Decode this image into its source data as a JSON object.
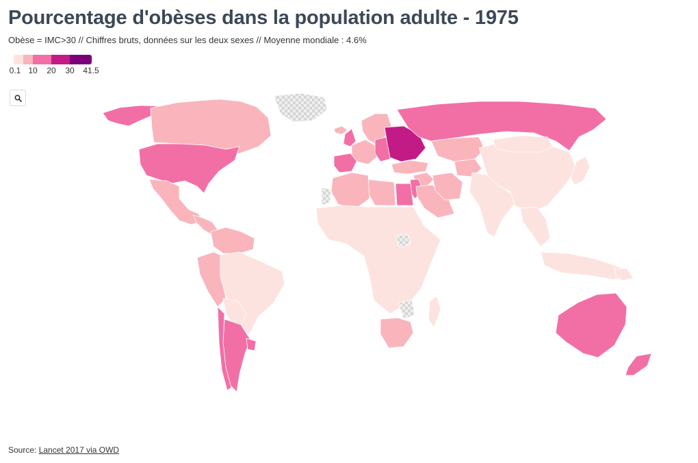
{
  "title": "Pourcentage d'obèses dans la population adulte - 1975",
  "subtitle": "Obèse = IMC>30 // Chiffres bruts, données sur les deux sexes // Moyenne mondiale : 4.6%",
  "legend": {
    "ticks": [
      "0.1",
      "10",
      "20",
      "30",
      "41.5"
    ],
    "breaks": [
      0.1,
      5,
      10,
      20,
      30,
      41.5
    ],
    "colors": [
      "#fde3df",
      "#f9b5bb",
      "#f26fa6",
      "#c31b86",
      "#7a0177"
    ],
    "nodata_color": "#d9d9d9"
  },
  "zoom": {
    "icon": "search-icon"
  },
  "source": {
    "prefix": "Source: ",
    "link_text": "Lancet 2017 via OWD"
  },
  "map_data": {
    "type": "choropleth",
    "scale_unit": "%",
    "regions": [
      {
        "area": "Alaska",
        "bin": 2
      },
      {
        "area": "Canada",
        "bin": 1
      },
      {
        "area": "Greenland",
        "bin": "nodata"
      },
      {
        "area": "United States",
        "bin": 2
      },
      {
        "area": "Mexico",
        "bin": 1
      },
      {
        "area": "Central America",
        "bin": 1
      },
      {
        "area": "Colombia / Venezuela",
        "bin": 1
      },
      {
        "area": "Peru / Ecuador",
        "bin": 1
      },
      {
        "area": "Brazil",
        "bin": 0
      },
      {
        "area": "Bolivia / Paraguay",
        "bin": 0
      },
      {
        "area": "Argentina",
        "bin": 2
      },
      {
        "area": "Chile",
        "bin": 2
      },
      {
        "area": "Uruguay",
        "bin": 2
      },
      {
        "area": "Iceland",
        "bin": 1
      },
      {
        "area": "Scandinavia",
        "bin": 1
      },
      {
        "area": "United Kingdom",
        "bin": 2
      },
      {
        "area": "Spain / Portugal",
        "bin": 2
      },
      {
        "area": "Western Europe",
        "bin": 1
      },
      {
        "area": "Central Europe",
        "bin": 2
      },
      {
        "area": "Eastern Europe",
        "bin": 3
      },
      {
        "area": "Russia",
        "bin": 2
      },
      {
        "area": "Kazakhstan",
        "bin": 1
      },
      {
        "area": "Central Asia",
        "bin": 1
      },
      {
        "area": "Turkey",
        "bin": 1
      },
      {
        "area": "Middle East",
        "bin": 1
      },
      {
        "area": "Israel / Jordan",
        "bin": 2
      },
      {
        "area": "Saudi Arabia",
        "bin": 1
      },
      {
        "area": "Iran",
        "bin": 1
      },
      {
        "area": "Egypt",
        "bin": 2
      },
      {
        "area": "Libya",
        "bin": 1
      },
      {
        "area": "Maghreb",
        "bin": 1
      },
      {
        "area": "Western Sahara",
        "bin": "nodata"
      },
      {
        "area": "Sub-Saharan Africa",
        "bin": 0
      },
      {
        "area": "South Sudan",
        "bin": "nodata"
      },
      {
        "area": "Botswana / Zimbabwe",
        "bin": "nodata"
      },
      {
        "area": "South Africa",
        "bin": 1
      },
      {
        "area": "Madagascar",
        "bin": 0
      },
      {
        "area": "India",
        "bin": 0
      },
      {
        "area": "China",
        "bin": 0
      },
      {
        "area": "Mongolia",
        "bin": 0
      },
      {
        "area": "Japan",
        "bin": 0
      },
      {
        "area": "Southeast Asia",
        "bin": 0
      },
      {
        "area": "Indonesia",
        "bin": 0
      },
      {
        "area": "Papua New Guinea",
        "bin": 0
      },
      {
        "area": "Australia",
        "bin": 2
      },
      {
        "area": "New Zealand",
        "bin": 2
      }
    ]
  }
}
